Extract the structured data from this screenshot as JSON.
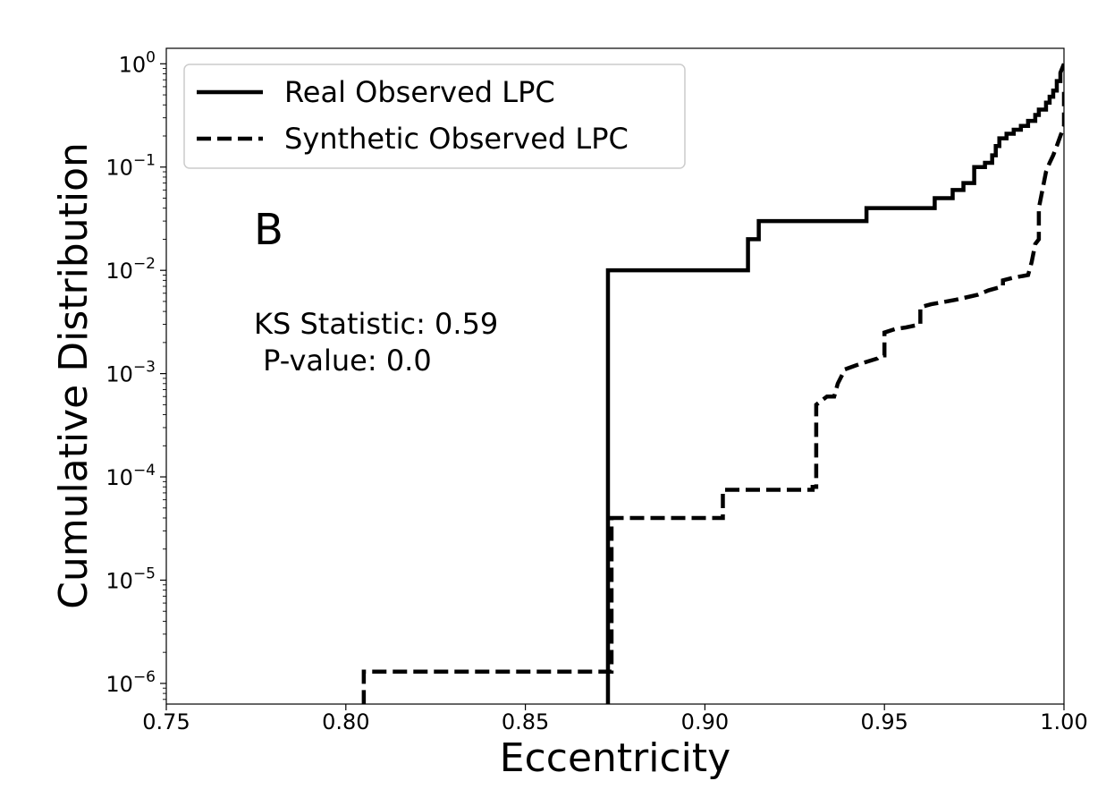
{
  "chart_data": {
    "type": "line",
    "title": "",
    "xlabel": "Eccentricity",
    "ylabel": "Cumulative Distribution",
    "xlim": [
      0.75,
      1.0
    ],
    "ylim_log10": [
      -6.2,
      0.15
    ],
    "yscale": "log",
    "xticks": [
      {
        "value": 0.75,
        "label": "0.75"
      },
      {
        "value": 0.8,
        "label": "0.80"
      },
      {
        "value": 0.85,
        "label": "0.85"
      },
      {
        "value": 0.9,
        "label": "0.90"
      },
      {
        "value": 0.95,
        "label": "0.95"
      },
      {
        "value": 1.0,
        "label": "1.00"
      }
    ],
    "yticks": [
      {
        "exp": 0,
        "base": "10",
        "sup": "0"
      },
      {
        "exp": -1,
        "base": "10",
        "sup": "−1"
      },
      {
        "exp": -2,
        "base": "10",
        "sup": "−2"
      },
      {
        "exp": -3,
        "base": "10",
        "sup": "−3"
      },
      {
        "exp": -4,
        "base": "10",
        "sup": "−4"
      },
      {
        "exp": -5,
        "base": "10",
        "sup": "−5"
      },
      {
        "exp": -6,
        "base": "10",
        "sup": "−6"
      }
    ],
    "grid": false,
    "legend_position": "top-left",
    "annotations": {
      "panel": "B",
      "line1": "KS Statistic: 0.59",
      "line2": " P-value: 0.0"
    },
    "series": [
      {
        "name": "Real Observed LPC",
        "style": "solid",
        "color": "#000000",
        "points": [
          [
            0.873,
            1e-07
          ],
          [
            0.873,
            0.01
          ],
          [
            0.912,
            0.01
          ],
          [
            0.912,
            0.02
          ],
          [
            0.915,
            0.02
          ],
          [
            0.915,
            0.03
          ],
          [
            0.945,
            0.03
          ],
          [
            0.945,
            0.04
          ],
          [
            0.964,
            0.04
          ],
          [
            0.964,
            0.05
          ],
          [
            0.969,
            0.05
          ],
          [
            0.969,
            0.06
          ],
          [
            0.972,
            0.06
          ],
          [
            0.972,
            0.07
          ],
          [
            0.975,
            0.07
          ],
          [
            0.975,
            0.1
          ],
          [
            0.978,
            0.1
          ],
          [
            0.978,
            0.11
          ],
          [
            0.98,
            0.11
          ],
          [
            0.98,
            0.13
          ],
          [
            0.981,
            0.13
          ],
          [
            0.981,
            0.16
          ],
          [
            0.982,
            0.16
          ],
          [
            0.982,
            0.19
          ],
          [
            0.984,
            0.19
          ],
          [
            0.984,
            0.21
          ],
          [
            0.986,
            0.21
          ],
          [
            0.986,
            0.23
          ],
          [
            0.988,
            0.23
          ],
          [
            0.988,
            0.25
          ],
          [
            0.99,
            0.25
          ],
          [
            0.99,
            0.28
          ],
          [
            0.992,
            0.28
          ],
          [
            0.992,
            0.32
          ],
          [
            0.993,
            0.32
          ],
          [
            0.993,
            0.36
          ],
          [
            0.995,
            0.36
          ],
          [
            0.995,
            0.42
          ],
          [
            0.996,
            0.42
          ],
          [
            0.996,
            0.48
          ],
          [
            0.997,
            0.48
          ],
          [
            0.997,
            0.55
          ],
          [
            0.998,
            0.55
          ],
          [
            0.998,
            0.68
          ],
          [
            0.999,
            0.68
          ],
          [
            0.999,
            0.82
          ],
          [
            1.0,
            1.0
          ]
        ]
      },
      {
        "name": "Synthetic Observed LPC",
        "style": "dashed",
        "color": "#000000",
        "points": [
          [
            0.805,
            1e-07
          ],
          [
            0.805,
            1.3e-06
          ],
          [
            0.874,
            1.3e-06
          ],
          [
            0.874,
            4e-05
          ],
          [
            0.905,
            4e-05
          ],
          [
            0.905,
            7.5e-05
          ],
          [
            0.93,
            7.5e-05
          ],
          [
            0.93,
            8e-05
          ],
          [
            0.931,
            8e-05
          ],
          [
            0.931,
            0.0005
          ],
          [
            0.934,
            0.0006
          ],
          [
            0.936,
            0.0006
          ],
          [
            0.937,
            0.0008
          ],
          [
            0.939,
            0.0011
          ],
          [
            0.942,
            0.0012
          ],
          [
            0.945,
            0.0013
          ],
          [
            0.948,
            0.0014
          ],
          [
            0.949,
            0.0015
          ],
          [
            0.95,
            0.0015
          ],
          [
            0.95,
            0.0025
          ],
          [
            0.953,
            0.0027
          ],
          [
            0.956,
            0.0028
          ],
          [
            0.96,
            0.003
          ],
          [
            0.96,
            0.0044
          ],
          [
            0.963,
            0.0047
          ],
          [
            0.966,
            0.0049
          ],
          [
            0.97,
            0.0052
          ],
          [
            0.976,
            0.0058
          ],
          [
            0.979,
            0.0064
          ],
          [
            0.983,
            0.007
          ],
          [
            0.983,
            0.008
          ],
          [
            0.986,
            0.0085
          ],
          [
            0.99,
            0.009
          ],
          [
            0.991,
            0.012
          ],
          [
            0.992,
            0.018
          ],
          [
            0.993,
            0.02
          ],
          [
            0.993,
            0.04
          ],
          [
            0.994,
            0.06
          ],
          [
            0.995,
            0.09
          ],
          [
            0.996,
            0.11
          ],
          [
            0.997,
            0.13
          ],
          [
            0.998,
            0.16
          ],
          [
            0.999,
            0.2
          ],
          [
            1.0,
            0.25
          ],
          [
            1.0,
            0.6
          ]
        ]
      }
    ]
  }
}
